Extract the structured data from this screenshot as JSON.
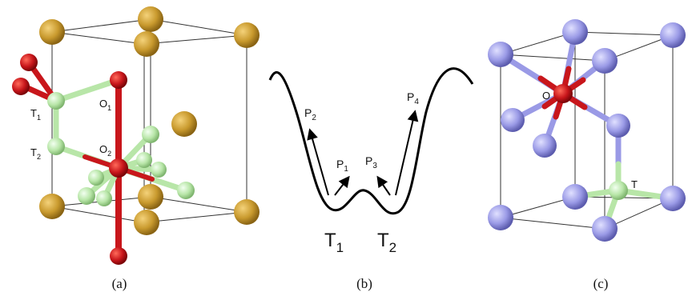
{
  "panels": {
    "a": {
      "caption": "(a)",
      "labels": {
        "t1_main": "T",
        "t1_sub": "1",
        "t2_main": "T",
        "t2_sub": "2",
        "o1_main": "O",
        "o1_sub": "1",
        "o2_main": "O",
        "o2_sub": "2"
      }
    },
    "b": {
      "caption": "(b)",
      "labels": {
        "p1_main": "P",
        "p1_sub": "1",
        "p2_main": "P",
        "p2_sub": "2",
        "p3_main": "P",
        "p3_sub": "3",
        "p4_main": "P",
        "p4_sub": "4",
        "t1_main": "T",
        "t1_sub": "1",
        "t2_main": "T",
        "t2_sub": "2"
      }
    },
    "c": {
      "caption": "(c)",
      "labels": {
        "o": "O",
        "t": "T"
      }
    }
  },
  "colors": {
    "metal_atom": "#c99a2e",
    "oxygen_atom": "#c8161b",
    "tetrahedral_atom": "#b8e6a8",
    "blue_atom": "#9a9ae6",
    "cell_line": "#333333",
    "curve": "#000000"
  }
}
